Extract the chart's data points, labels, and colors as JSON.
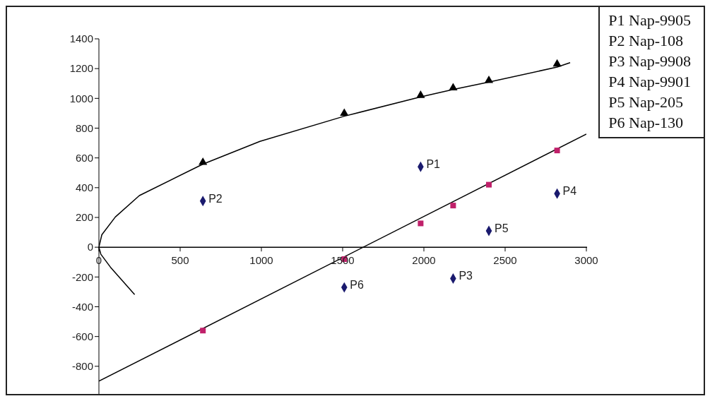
{
  "chart_data": {
    "type": "scatter",
    "xlim": [
      0,
      3000
    ],
    "xticks": [
      0,
      500,
      1000,
      1500,
      2000,
      2500,
      3000
    ],
    "ylim": [
      -1000,
      1400
    ],
    "yticks": [
      -800,
      -600,
      -400,
      -200,
      0,
      200,
      400,
      600,
      800,
      1000,
      1200,
      1400
    ],
    "series": [
      {
        "type": "line",
        "color": "#000000",
        "marker": "none",
        "x": [
          220,
          71,
          12,
          0,
          18,
          101,
          249,
          640,
          991,
          1510,
          1980,
          2180,
          2400,
          2820,
          2900
        ],
        "values": [
          -318,
          -134,
          -47,
          0,
          84,
          203,
          347,
          558,
          711,
          880,
          1010,
          1060,
          1110,
          1210,
          1240
        ]
      },
      {
        "type": "line",
        "color": "#000000",
        "marker": "none",
        "x": [
          0,
          3000
        ],
        "values": [
          -900,
          760
        ]
      },
      {
        "color": "#000000",
        "marker": "triangle",
        "x": [
          640,
          1510,
          1980,
          2180,
          2400,
          2820
        ],
        "values": [
          570,
          900,
          1020,
          1070,
          1120,
          1230
        ]
      },
      {
        "color": "#c0206a",
        "marker": "square",
        "x": [
          640,
          1510,
          1980,
          2180,
          2400,
          2820
        ],
        "values": [
          -560,
          -80,
          160,
          280,
          420,
          650
        ]
      },
      {
        "color": "#1a1a6e",
        "marker": "diamond",
        "x": [
          1980,
          640,
          2180,
          2820,
          2400,
          1510
        ],
        "values": [
          540,
          310,
          -210,
          360,
          110,
          -270
        ],
        "value_labels": [
          "P1",
          "P2",
          "P3",
          "P4",
          "P5",
          "P6"
        ]
      }
    ],
    "annotations": [
      "P1 Nap-9905",
      "P2 Nap-108",
      "P3 Nap-9908",
      "P4 Nap-9901",
      "P5 Nap-205",
      "P6 Nap-130"
    ]
  }
}
